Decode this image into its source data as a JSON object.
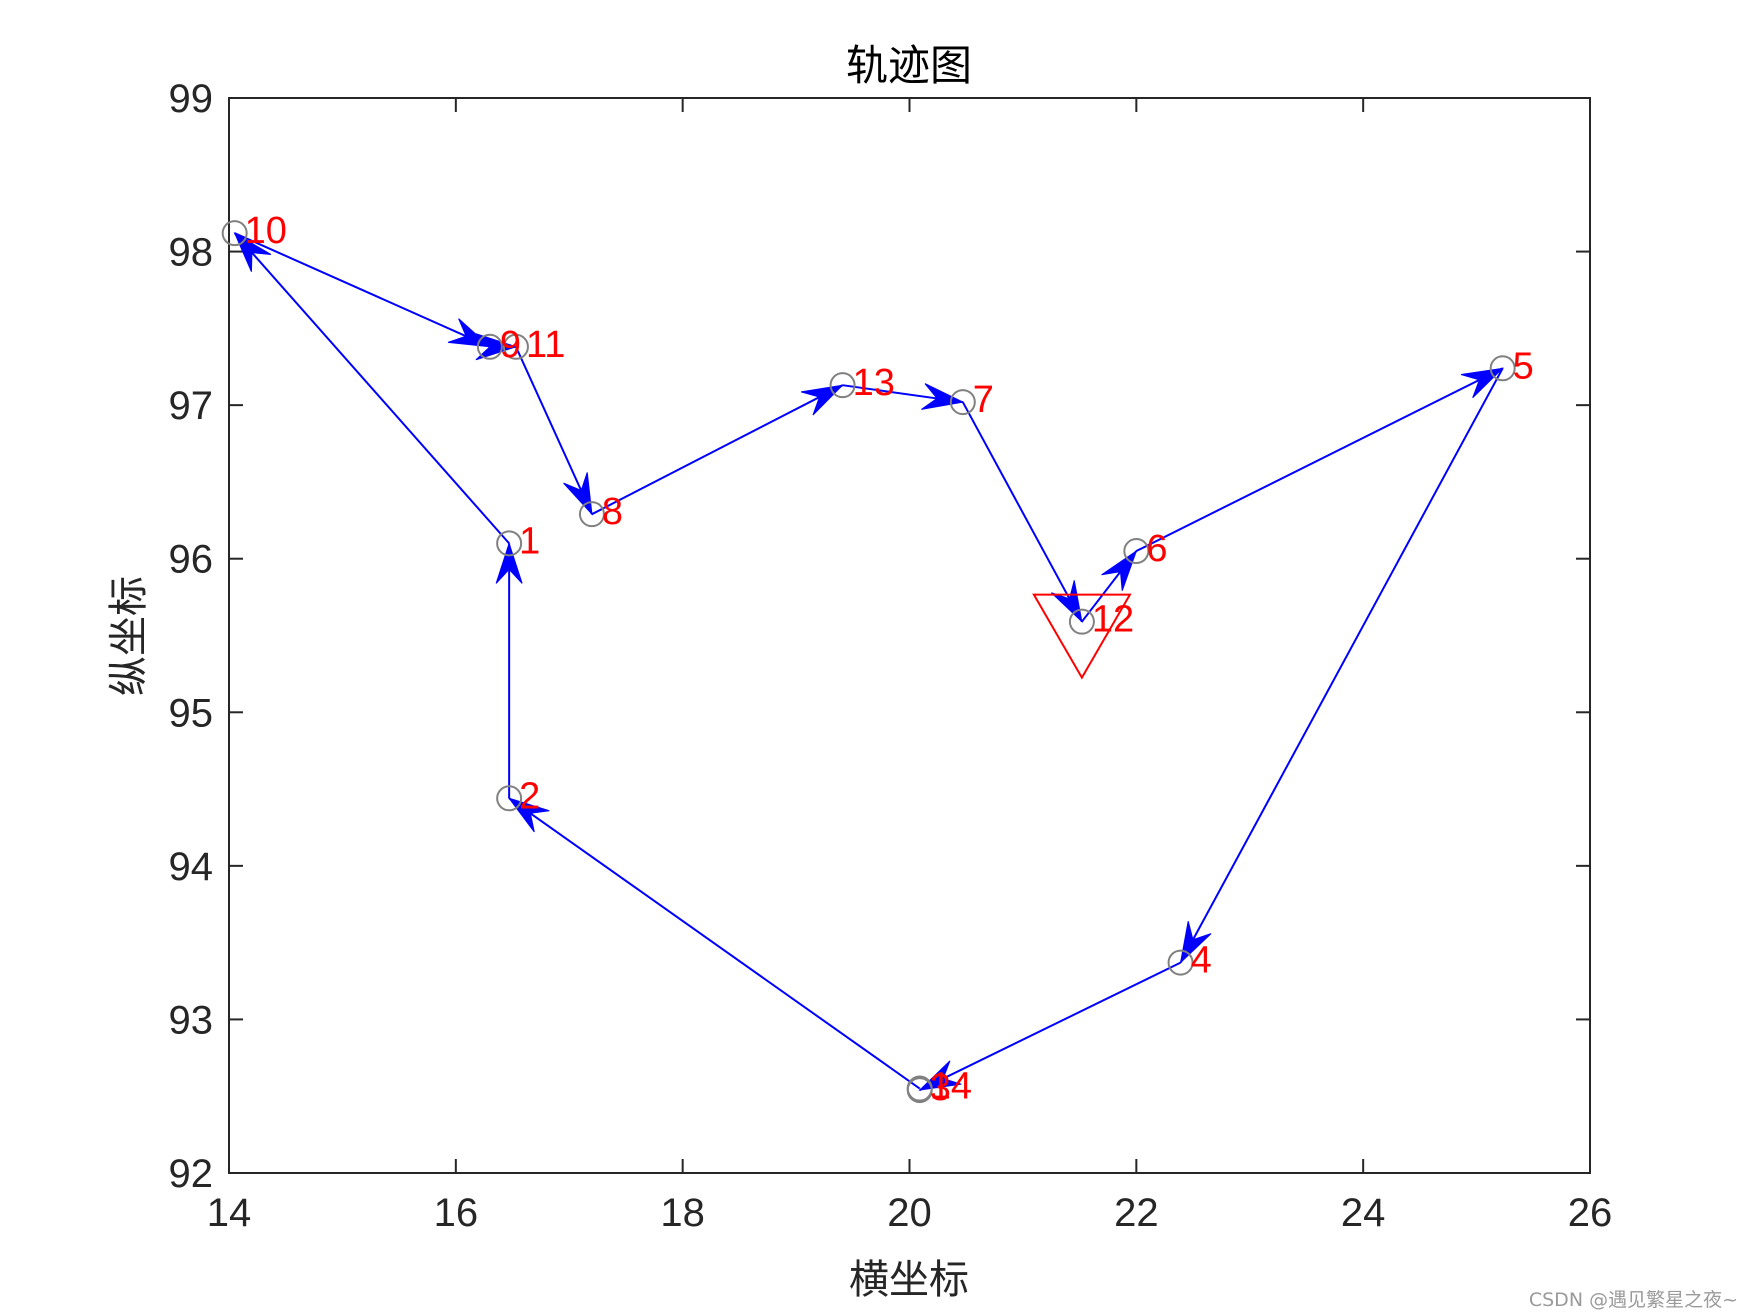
{
  "chart_data": {
    "type": "line",
    "title": "轨迹图",
    "xlabel": "横坐标",
    "ylabel": "纵坐标",
    "xlim": [
      14,
      26
    ],
    "ylim": [
      92,
      99
    ],
    "xticks": [
      "14",
      "16",
      "18",
      "20",
      "22",
      "24",
      "26"
    ],
    "yticks": [
      "92",
      "93",
      "94",
      "95",
      "96",
      "97",
      "98",
      "99"
    ],
    "grid": false,
    "points": [
      {
        "label": "1",
        "x": 16.47,
        "y": 96.1
      },
      {
        "label": "2",
        "x": 16.47,
        "y": 94.44
      },
      {
        "label": "3",
        "x": 20.09,
        "y": 92.54
      },
      {
        "label": "4",
        "x": 22.39,
        "y": 93.37
      },
      {
        "label": "5",
        "x": 25.23,
        "y": 97.24
      },
      {
        "label": "6",
        "x": 22.0,
        "y": 96.05
      },
      {
        "label": "7",
        "x": 20.47,
        "y": 97.02
      },
      {
        "label": "8",
        "x": 17.2,
        "y": 96.29
      },
      {
        "label": "9",
        "x": 16.3,
        "y": 97.38
      },
      {
        "label": "10",
        "x": 14.05,
        "y": 98.12
      },
      {
        "label": "11",
        "x": 16.53,
        "y": 97.38
      },
      {
        "label": "12",
        "x": 21.52,
        "y": 95.59
      },
      {
        "label": "13",
        "x": 19.41,
        "y": 97.13
      },
      {
        "label": "14",
        "x": 20.09,
        "y": 92.55
      }
    ],
    "path": [
      "14",
      "2",
      "1",
      "10",
      "9",
      "11",
      "8",
      "13",
      "7",
      "12",
      "6",
      "5",
      "4",
      "3"
    ],
    "start_marker": {
      "x": 21.52,
      "y": 95.59,
      "shape": "inverted-triangle"
    },
    "colors": {
      "path": "#0000ff",
      "labels": "#ff0000",
      "markers": "#808080",
      "start_marker": "#ff0000"
    }
  },
  "watermark": "CSDN @遇见繁星之夜~"
}
